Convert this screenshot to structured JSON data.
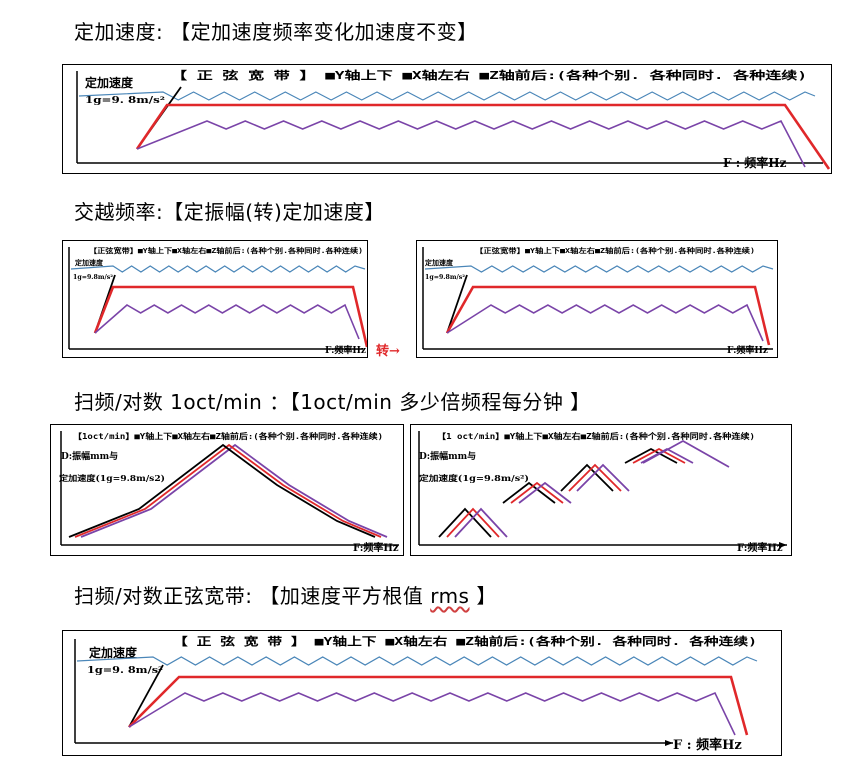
{
  "headings": {
    "h1": "定加速度: 【定加速度频率变化加速度不变】",
    "h2": "交越频率:【定振幅(转)定加速度】",
    "h3": "扫频/对数 1oct/min ：【1oct/min 多少倍频程每分钟  】",
    "h4_main": "扫频/对数正弦宽带: 【加速度平方根值 ",
    "h4_rms": "rms",
    "h4_end": "  】"
  },
  "panels": {
    "p1": {
      "title": "【 正 弦 宽 带 】 ■Y轴上下 ■X轴左右 ■Z轴前后:(各种个别. 各种同时. 各种连续)",
      "ylabel": "定加速度",
      "ylabel2": "1g=9. 8m/s²",
      "xlabel": "F : 频率Hz"
    },
    "p2a": {
      "title": "【正弦宽带】■Y轴上下■X轴左右■Z轴前后:(各种个别.各种同时.各种连续)",
      "ylabel": "定加速度",
      "ylabel2": "1g=9.8m/s²",
      "xlabel": "F:频率Hz"
    },
    "arrow_label": "转→",
    "p2b": {
      "title": "【正弦宽带】■Y轴上下■X轴左右■Z轴前后:(各种个别.各种同时.各种连续)",
      "ylabel": "定加速度",
      "ylabel2": "1g=9.8m/s²",
      "xlabel": "F:频率Hz"
    },
    "p3a": {
      "title": "【1oct/min】■Y轴上下■X轴左右■Z轴前后:(各种个别.各种同时.各种连续)",
      "ylabel": "D:振幅mm与",
      "ylabel2": "定加速度(1g=9.8m/s2)",
      "xlabel": "F:频率Hz"
    },
    "p3b": {
      "title": "【1 oct/min】■Y轴上下■X轴左右■Z轴前后:(各种个别.各种同时.各种连续)",
      "ylabel": "D:振幅mm与",
      "ylabel2": "定加速度(1g=9.8m/s²)",
      "xlabel": "F:频率Hz"
    },
    "p4": {
      "title": "【 正 弦 宽 带 】 ■Y轴上下 ■X轴左右 ■Z轴前后:(各种个别. 各种同时. 各种连续)",
      "ylabel": "定加速度",
      "ylabel2": "1g=9. 8m/s²",
      "xlabel": "F : 频率Hz"
    }
  },
  "colors": {
    "blue": "#4a86b8",
    "red": "#e0282a",
    "purple": "#7a44a8",
    "black": "#000000",
    "arrow": "#e0282a"
  }
}
